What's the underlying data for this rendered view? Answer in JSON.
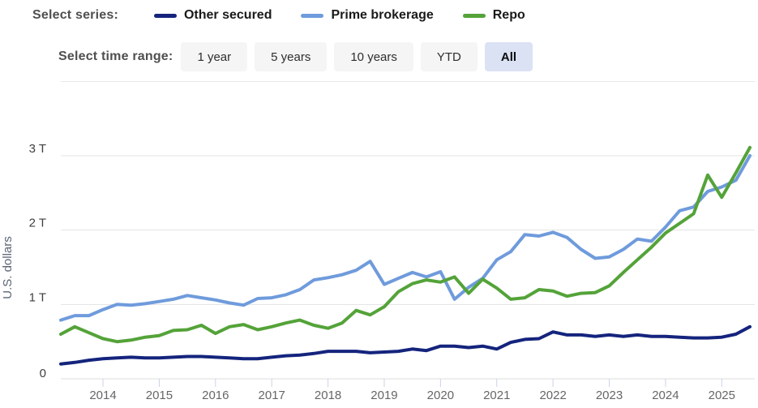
{
  "header": {
    "series_label": "Select series:",
    "legend": [
      {
        "name": "Other secured",
        "color": "#14247d"
      },
      {
        "name": "Prime brokerage",
        "color": "#6f9bdc"
      },
      {
        "name": "Repo",
        "color": "#54a339"
      }
    ],
    "time_range_label": "Select time range:",
    "time_ranges": [
      {
        "label": "1 year",
        "selected": false
      },
      {
        "label": "5 years",
        "selected": false
      },
      {
        "label": "10 years",
        "selected": false
      },
      {
        "label": "YTD",
        "selected": false
      },
      {
        "label": "All",
        "selected": true
      }
    ]
  },
  "chart_data": {
    "type": "line",
    "title": "",
    "xlabel": "",
    "ylabel": "U.S. dollars",
    "unit": "trillions of U.S. dollars",
    "grid": "horizontal",
    "legend_position": "top",
    "xlim": [
      2013.25,
      2025.62
    ],
    "ylim": [
      0,
      3.95
    ],
    "y_ticks": [
      {
        "value": 0,
        "label": "0"
      },
      {
        "value": 1,
        "label": "1 T"
      },
      {
        "value": 2,
        "label": "2 T"
      },
      {
        "value": 3,
        "label": "3 T"
      }
    ],
    "x_ticks": [
      2014,
      2015,
      2016,
      2017,
      2018,
      2019,
      2020,
      2021,
      2022,
      2023,
      2024,
      2025
    ],
    "x": [
      2013.25,
      2013.5,
      2013.75,
      2014,
      2014.25,
      2014.5,
      2014.75,
      2015,
      2015.25,
      2015.5,
      2015.75,
      2016,
      2016.25,
      2016.5,
      2016.75,
      2017,
      2017.25,
      2017.5,
      2017.75,
      2018,
      2018.25,
      2018.5,
      2018.75,
      2019,
      2019.25,
      2019.5,
      2019.75,
      2020,
      2020.25,
      2020.5,
      2020.75,
      2021,
      2021.25,
      2021.5,
      2021.75,
      2022,
      2022.25,
      2022.5,
      2022.75,
      2023,
      2023.25,
      2023.5,
      2023.75,
      2024,
      2024.25,
      2024.5,
      2024.75,
      2025,
      2025.25,
      2025.5
    ],
    "series": [
      {
        "name": "Other secured",
        "color": "#14247d",
        "values": [
          0.2,
          0.22,
          0.25,
          0.27,
          0.28,
          0.29,
          0.28,
          0.28,
          0.29,
          0.3,
          0.3,
          0.29,
          0.28,
          0.27,
          0.27,
          0.29,
          0.31,
          0.32,
          0.34,
          0.37,
          0.37,
          0.37,
          0.35,
          0.36,
          0.37,
          0.4,
          0.38,
          0.44,
          0.44,
          0.42,
          0.44,
          0.4,
          0.49,
          0.53,
          0.54,
          0.63,
          0.59,
          0.59,
          0.57,
          0.59,
          0.57,
          0.59,
          0.57,
          0.57,
          0.56,
          0.55,
          0.55,
          0.56,
          0.6,
          0.7
        ]
      },
      {
        "name": "Prime brokerage",
        "color": "#6f9bdc",
        "values": [
          0.79,
          0.85,
          0.85,
          0.93,
          1.0,
          0.99,
          1.01,
          1.04,
          1.07,
          1.12,
          1.09,
          1.06,
          1.02,
          0.99,
          1.08,
          1.09,
          1.13,
          1.2,
          1.33,
          1.36,
          1.4,
          1.46,
          1.58,
          1.27,
          1.35,
          1.43,
          1.37,
          1.44,
          1.07,
          1.23,
          1.35,
          1.6,
          1.71,
          1.94,
          1.92,
          1.97,
          1.9,
          1.74,
          1.62,
          1.64,
          1.74,
          1.88,
          1.85,
          2.04,
          2.26,
          2.31,
          2.52,
          2.58,
          2.67,
          3.0
        ]
      },
      {
        "name": "Repo",
        "color": "#54a339",
        "values": [
          0.6,
          0.7,
          0.62,
          0.54,
          0.5,
          0.52,
          0.56,
          0.58,
          0.65,
          0.66,
          0.72,
          0.61,
          0.7,
          0.73,
          0.66,
          0.7,
          0.75,
          0.79,
          0.72,
          0.68,
          0.75,
          0.92,
          0.86,
          0.97,
          1.17,
          1.28,
          1.33,
          1.3,
          1.37,
          1.15,
          1.34,
          1.22,
          1.07,
          1.09,
          1.2,
          1.18,
          1.11,
          1.15,
          1.16,
          1.25,
          1.43,
          1.6,
          1.77,
          1.96,
          2.09,
          2.22,
          2.74,
          2.44,
          2.77,
          3.11
        ]
      }
    ]
  }
}
